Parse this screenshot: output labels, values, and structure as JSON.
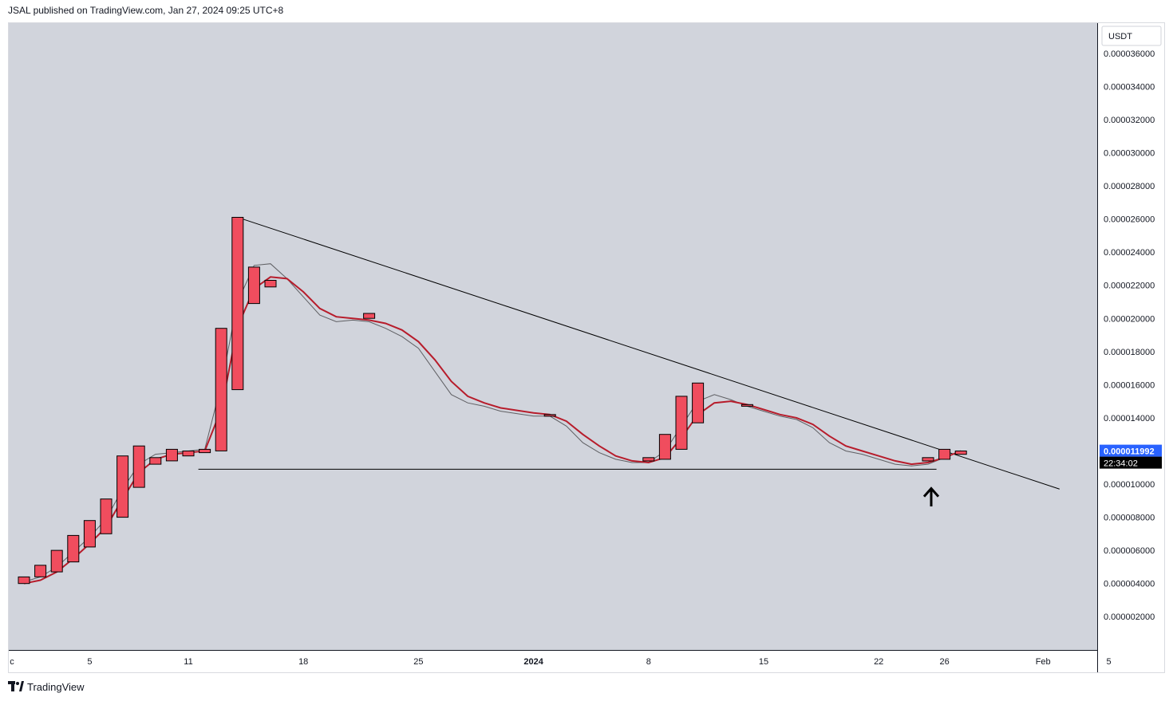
{
  "header": {
    "text": "JSAL published on TradingView.com, Jan 27, 2024 09:25 UTC+8"
  },
  "footer": {
    "brand": "TradingView"
  },
  "icons": {
    "logo": "tradingview-logo-icon",
    "annotation": "up-arrow-icon"
  },
  "colors": {
    "background": "#d1d4dc",
    "candle": "#f04d5e",
    "ma_fast": "#5f5f63",
    "ma_slow": "#b71c2b",
    "trendline": "#000000",
    "price_label": "#2962ff"
  },
  "price_axis": {
    "currency": "USDT",
    "ticks": [
      "0.000036000",
      "0.000034000",
      "0.000032000",
      "0.000030000",
      "0.000028000",
      "0.000026000",
      "0.000024000",
      "0.000022000",
      "0.000020000",
      "0.000018000",
      "0.000016000",
      "0.000014000",
      "0.000010000",
      "0.000008000",
      "0.000006000",
      "0.000004000",
      "0.000002000"
    ],
    "last_price": "0.000011992",
    "countdown": "22:34:02"
  },
  "time_axis": {
    "ticks": [
      {
        "label": "c",
        "bold": false
      },
      {
        "label": "5",
        "bold": false
      },
      {
        "label": "11",
        "bold": false
      },
      {
        "label": "18",
        "bold": false
      },
      {
        "label": "25",
        "bold": false
      },
      {
        "label": "2024",
        "bold": true
      },
      {
        "label": "8",
        "bold": false
      },
      {
        "label": "15",
        "bold": false
      },
      {
        "label": "22",
        "bold": false
      },
      {
        "label": "26",
        "bold": false
      },
      {
        "label": "Feb",
        "bold": false
      },
      {
        "label": "5",
        "bold": false
      }
    ]
  },
  "chart_data": {
    "type": "candlestick",
    "symbol_currency": "USDT",
    "ylim": [
      0.0,
      3.7e-05
    ],
    "grid": false,
    "candles": [
      {
        "date": "2023-12-01",
        "open": 4e-06,
        "close": 4.4e-06
      },
      {
        "date": "2023-12-02",
        "open": 4.4e-06,
        "close": 5.1e-06
      },
      {
        "date": "2023-12-03",
        "open": 4.7e-06,
        "close": 6e-06
      },
      {
        "date": "2023-12-04",
        "open": 5.3e-06,
        "close": 6.9e-06
      },
      {
        "date": "2023-12-05",
        "open": 6.2e-06,
        "close": 7.8e-06
      },
      {
        "date": "2023-12-06",
        "open": 7e-06,
        "close": 9.1e-06
      },
      {
        "date": "2023-12-07",
        "open": 8e-06,
        "close": 1.17e-05
      },
      {
        "date": "2023-12-08",
        "open": 9.8e-06,
        "close": 1.23e-05
      },
      {
        "date": "2023-12-09",
        "open": 1.12e-05,
        "close": 1.16e-05
      },
      {
        "date": "2023-12-10",
        "open": 1.14e-05,
        "close": 1.21e-05
      },
      {
        "date": "2023-12-11",
        "open": 1.17e-05,
        "close": 1.2e-05
      },
      {
        "date": "2023-12-12",
        "open": 1.19e-05,
        "close": 1.21e-05
      },
      {
        "date": "2023-12-13",
        "open": 1.2e-05,
        "close": 1.94e-05
      },
      {
        "date": "2023-12-14",
        "open": 1.57e-05,
        "close": 2.61e-05
      },
      {
        "date": "2023-12-15",
        "open": 2.09e-05,
        "close": 2.31e-05
      },
      {
        "date": "2023-12-16",
        "open": 2.19e-05,
        "close": 2.23e-05
      },
      {
        "date": "2023-12-22",
        "open": 2e-05,
        "close": 2.03e-05
      },
      {
        "date": "2024-01-02",
        "open": 1.41e-05,
        "close": 1.42e-05
      },
      {
        "date": "2024-01-08",
        "open": 1.14e-05,
        "close": 1.16e-05
      },
      {
        "date": "2024-01-09",
        "open": 1.15e-05,
        "close": 1.3e-05
      },
      {
        "date": "2024-01-10",
        "open": 1.21e-05,
        "close": 1.53e-05
      },
      {
        "date": "2024-01-11",
        "open": 1.37e-05,
        "close": 1.61e-05
      },
      {
        "date": "2024-01-14",
        "open": 1.47e-05,
        "close": 1.48e-05
      },
      {
        "date": "2024-01-25",
        "open": 1.14e-05,
        "close": 1.16e-05
      },
      {
        "date": "2024-01-26",
        "open": 1.15e-05,
        "close": 1.21e-05
      },
      {
        "date": "2024-01-27",
        "open": 1.18e-05,
        "close": 1.2e-05
      }
    ],
    "ma_fast": [
      [
        "2023-12-01",
        4.1e-06
      ],
      [
        "2023-12-02",
        4.4e-06
      ],
      [
        "2023-12-03",
        5e-06
      ],
      [
        "2023-12-04",
        5.9e-06
      ],
      [
        "2023-12-05",
        6.8e-06
      ],
      [
        "2023-12-06",
        7.9e-06
      ],
      [
        "2023-12-07",
        9.7e-06
      ],
      [
        "2023-12-08",
        1.12e-05
      ],
      [
        "2023-12-09",
        1.18e-05
      ],
      [
        "2023-12-10",
        1.19e-05
      ],
      [
        "2023-12-11",
        1.2e-05
      ],
      [
        "2023-12-12",
        1.21e-05
      ],
      [
        "2023-12-13",
        1.6e-05
      ],
      [
        "2023-12-14",
        2.1e-05
      ],
      [
        "2023-12-15",
        2.32e-05
      ],
      [
        "2023-12-16",
        2.33e-05
      ],
      [
        "2023-12-17",
        2.24e-05
      ],
      [
        "2023-12-18",
        2.13e-05
      ],
      [
        "2023-12-19",
        2.02e-05
      ],
      [
        "2023-12-20",
        1.98e-05
      ],
      [
        "2023-12-21",
        1.99e-05
      ],
      [
        "2023-12-22",
        1.98e-05
      ],
      [
        "2023-12-23",
        1.94e-05
      ],
      [
        "2023-12-24",
        1.89e-05
      ],
      [
        "2023-12-25",
        1.82e-05
      ],
      [
        "2023-12-26",
        1.68e-05
      ],
      [
        "2023-12-27",
        1.54e-05
      ],
      [
        "2023-12-28",
        1.49e-05
      ],
      [
        "2023-12-29",
        1.47e-05
      ],
      [
        "2023-12-30",
        1.44e-05
      ],
      [
        "2024-01-01",
        1.41e-05
      ],
      [
        "2024-01-02",
        1.41e-05
      ],
      [
        "2024-01-03",
        1.35e-05
      ],
      [
        "2024-01-04",
        1.25e-05
      ],
      [
        "2024-01-05",
        1.19e-05
      ],
      [
        "2024-01-06",
        1.15e-05
      ],
      [
        "2024-01-07",
        1.13e-05
      ],
      [
        "2024-01-08",
        1.13e-05
      ],
      [
        "2024-01-09",
        1.2e-05
      ],
      [
        "2024-01-10",
        1.35e-05
      ],
      [
        "2024-01-11",
        1.5e-05
      ],
      [
        "2024-01-12",
        1.54e-05
      ],
      [
        "2024-01-13",
        1.51e-05
      ],
      [
        "2024-01-14",
        1.47e-05
      ],
      [
        "2024-01-15",
        1.44e-05
      ],
      [
        "2024-01-16",
        1.41e-05
      ],
      [
        "2024-01-17",
        1.39e-05
      ],
      [
        "2024-01-18",
        1.34e-05
      ],
      [
        "2024-01-19",
        1.25e-05
      ],
      [
        "2024-01-20",
        1.2e-05
      ],
      [
        "2024-01-21",
        1.18e-05
      ],
      [
        "2024-01-22",
        1.15e-05
      ],
      [
        "2024-01-23",
        1.12e-05
      ],
      [
        "2024-01-24",
        1.11e-05
      ],
      [
        "2024-01-25",
        1.12e-05
      ],
      [
        "2024-01-26",
        1.16e-05
      ],
      [
        "2024-01-27",
        1.2e-05
      ]
    ],
    "ma_slow": [
      [
        "2023-12-01",
        4e-06
      ],
      [
        "2023-12-02",
        4.2e-06
      ],
      [
        "2023-12-03",
        4.7e-06
      ],
      [
        "2023-12-04",
        5.5e-06
      ],
      [
        "2023-12-05",
        6.4e-06
      ],
      [
        "2023-12-06",
        7.4e-06
      ],
      [
        "2023-12-07",
        9.1e-06
      ],
      [
        "2023-12-08",
        1.07e-05
      ],
      [
        "2023-12-09",
        1.15e-05
      ],
      [
        "2023-12-10",
        1.18e-05
      ],
      [
        "2023-12-11",
        1.19e-05
      ],
      [
        "2023-12-12",
        1.2e-05
      ],
      [
        "2023-12-13",
        1.45e-05
      ],
      [
        "2023-12-14",
        1.95e-05
      ],
      [
        "2023-12-15",
        2.18e-05
      ],
      [
        "2023-12-16",
        2.25e-05
      ],
      [
        "2023-12-17",
        2.24e-05
      ],
      [
        "2023-12-18",
        2.16e-05
      ],
      [
        "2023-12-19",
        2.06e-05
      ],
      [
        "2023-12-20",
        2.01e-05
      ],
      [
        "2023-12-21",
        2e-05
      ],
      [
        "2023-12-22",
        1.99e-05
      ],
      [
        "2023-12-23",
        1.97e-05
      ],
      [
        "2023-12-24",
        1.93e-05
      ],
      [
        "2023-12-25",
        1.86e-05
      ],
      [
        "2023-12-26",
        1.75e-05
      ],
      [
        "2023-12-27",
        1.62e-05
      ],
      [
        "2023-12-28",
        1.53e-05
      ],
      [
        "2023-12-29",
        1.49e-05
      ],
      [
        "2023-12-30",
        1.46e-05
      ],
      [
        "2024-01-01",
        1.43e-05
      ],
      [
        "2024-01-02",
        1.42e-05
      ],
      [
        "2024-01-03",
        1.38e-05
      ],
      [
        "2024-01-04",
        1.3e-05
      ],
      [
        "2024-01-05",
        1.23e-05
      ],
      [
        "2024-01-06",
        1.17e-05
      ],
      [
        "2024-01-07",
        1.14e-05
      ],
      [
        "2024-01-08",
        1.13e-05
      ],
      [
        "2024-01-09",
        1.16e-05
      ],
      [
        "2024-01-10",
        1.28e-05
      ],
      [
        "2024-01-11",
        1.42e-05
      ],
      [
        "2024-01-12",
        1.49e-05
      ],
      [
        "2024-01-13",
        1.5e-05
      ],
      [
        "2024-01-14",
        1.48e-05
      ],
      [
        "2024-01-15",
        1.45e-05
      ],
      [
        "2024-01-16",
        1.42e-05
      ],
      [
        "2024-01-17",
        1.4e-05
      ],
      [
        "2024-01-18",
        1.36e-05
      ],
      [
        "2024-01-19",
        1.29e-05
      ],
      [
        "2024-01-20",
        1.23e-05
      ],
      [
        "2024-01-21",
        1.2e-05
      ],
      [
        "2024-01-22",
        1.17e-05
      ],
      [
        "2024-01-23",
        1.14e-05
      ],
      [
        "2024-01-24",
        1.12e-05
      ],
      [
        "2024-01-25",
        1.13e-05
      ],
      [
        "2024-01-26",
        1.16e-05
      ],
      [
        "2024-01-27",
        1.2e-05
      ]
    ],
    "drawings": {
      "descending_trendline": {
        "from": [
          "2023-12-14",
          2.61e-05
        ],
        "to": [
          "2024-02-02",
          9.7e-06
        ]
      },
      "support_line": {
        "from": [
          "2023-12-12",
          1.09e-05
        ],
        "to": [
          "2024-01-26",
          1.09e-05
        ]
      },
      "arrow_marker": {
        "date": "2024-01-25",
        "price": 9.4e-06,
        "direction": "up"
      }
    }
  }
}
